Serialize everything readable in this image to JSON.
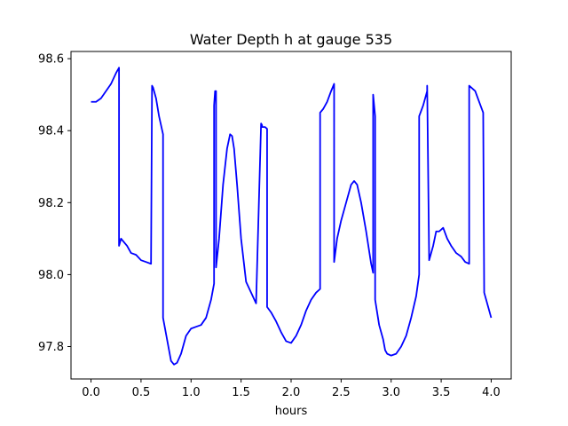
{
  "chart_data": {
    "type": "line",
    "title": "Water Depth h at gauge 535",
    "xlabel": "hours",
    "ylabel": "",
    "xlim": [
      -0.2,
      4.2
    ],
    "ylim": [
      97.71,
      98.62
    ],
    "xticks": [
      0.0,
      0.5,
      1.0,
      1.5,
      2.0,
      2.5,
      3.0,
      3.5,
      4.0
    ],
    "xtick_labels": [
      "0.0",
      "0.5",
      "1.0",
      "1.5",
      "2.0",
      "2.5",
      "3.0",
      "3.5",
      "4.0"
    ],
    "yticks": [
      97.8,
      98.0,
      98.2,
      98.4,
      98.6
    ],
    "ytick_labels": [
      "97.8",
      "98.0",
      "98.2",
      "98.4",
      "98.6"
    ],
    "grid": false,
    "legend": "none",
    "series": [
      {
        "color": "#0000ff",
        "x": [
          0.0,
          0.05,
          0.1,
          0.15,
          0.2,
          0.25,
          0.28,
          0.28,
          0.3,
          0.33,
          0.36,
          0.4,
          0.45,
          0.5,
          0.55,
          0.6,
          0.61,
          0.62,
          0.65,
          0.68,
          0.72,
          0.72,
          0.76,
          0.8,
          0.83,
          0.86,
          0.9,
          0.95,
          1.0,
          1.05,
          1.1,
          1.15,
          1.2,
          1.23,
          1.23,
          1.24,
          1.25,
          1.25,
          1.28,
          1.32,
          1.36,
          1.39,
          1.41,
          1.43,
          1.46,
          1.5,
          1.55,
          1.6,
          1.65,
          1.7,
          1.71,
          1.71,
          1.74,
          1.76,
          1.76,
          1.8,
          1.85,
          1.9,
          1.95,
          2.0,
          2.05,
          2.1,
          2.15,
          2.2,
          2.25,
          2.29,
          2.29,
          2.32,
          2.36,
          2.4,
          2.43,
          2.43,
          2.46,
          2.5,
          2.55,
          2.6,
          2.63,
          2.66,
          2.7,
          2.75,
          2.8,
          2.82,
          2.82,
          2.84,
          2.84,
          2.88,
          2.92,
          2.94,
          2.96,
          3.0,
          3.05,
          3.1,
          3.15,
          3.2,
          3.25,
          3.28,
          3.28,
          3.32,
          3.36,
          3.36,
          3.38,
          3.42,
          3.45,
          3.48,
          3.52,
          3.56,
          3.6,
          3.65,
          3.7,
          3.74,
          3.78,
          3.78,
          3.84,
          3.88,
          3.92,
          3.93,
          3.97,
          4.0
        ],
        "y": [
          98.48,
          98.48,
          98.49,
          98.51,
          98.53,
          98.56,
          98.575,
          98.08,
          98.1,
          98.09,
          98.08,
          98.06,
          98.055,
          98.04,
          98.035,
          98.03,
          98.525,
          98.52,
          98.49,
          98.44,
          98.39,
          97.88,
          97.82,
          97.76,
          97.75,
          97.755,
          97.78,
          97.83,
          97.85,
          97.855,
          97.86,
          97.88,
          97.93,
          97.975,
          98.47,
          98.51,
          98.51,
          98.02,
          98.1,
          98.25,
          98.35,
          98.39,
          98.385,
          98.35,
          98.25,
          98.1,
          97.98,
          97.95,
          97.92,
          98.42,
          98.415,
          98.41,
          98.41,
          98.405,
          97.91,
          97.895,
          97.87,
          97.84,
          97.815,
          97.81,
          97.83,
          97.86,
          97.9,
          97.93,
          97.95,
          97.96,
          98.45,
          98.46,
          98.48,
          98.51,
          98.53,
          98.035,
          98.1,
          98.15,
          98.2,
          98.25,
          98.26,
          98.25,
          98.2,
          98.12,
          98.03,
          98.005,
          98.5,
          98.44,
          97.93,
          97.86,
          97.82,
          97.79,
          97.78,
          97.775,
          97.78,
          97.8,
          97.83,
          97.88,
          97.94,
          98.0,
          98.44,
          98.47,
          98.51,
          98.525,
          98.04,
          98.08,
          98.12,
          98.12,
          98.13,
          98.1,
          98.08,
          98.06,
          98.05,
          98.035,
          98.03,
          98.525,
          98.51,
          98.48,
          98.45,
          97.95,
          97.91,
          97.88
        ]
      }
    ]
  }
}
